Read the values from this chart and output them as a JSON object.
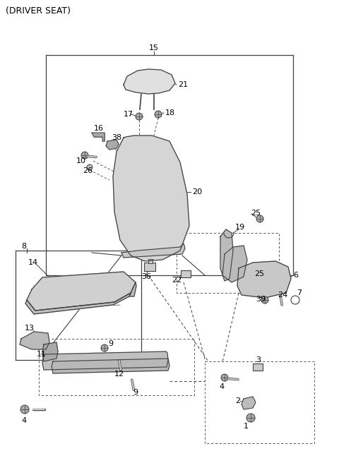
{
  "title": "(DRIVER SEAT)",
  "bg_color": "#ffffff",
  "line_color": "#404040",
  "text_color": "#000000",
  "fig_w": 4.8,
  "fig_h": 6.56,
  "dpi": 100
}
